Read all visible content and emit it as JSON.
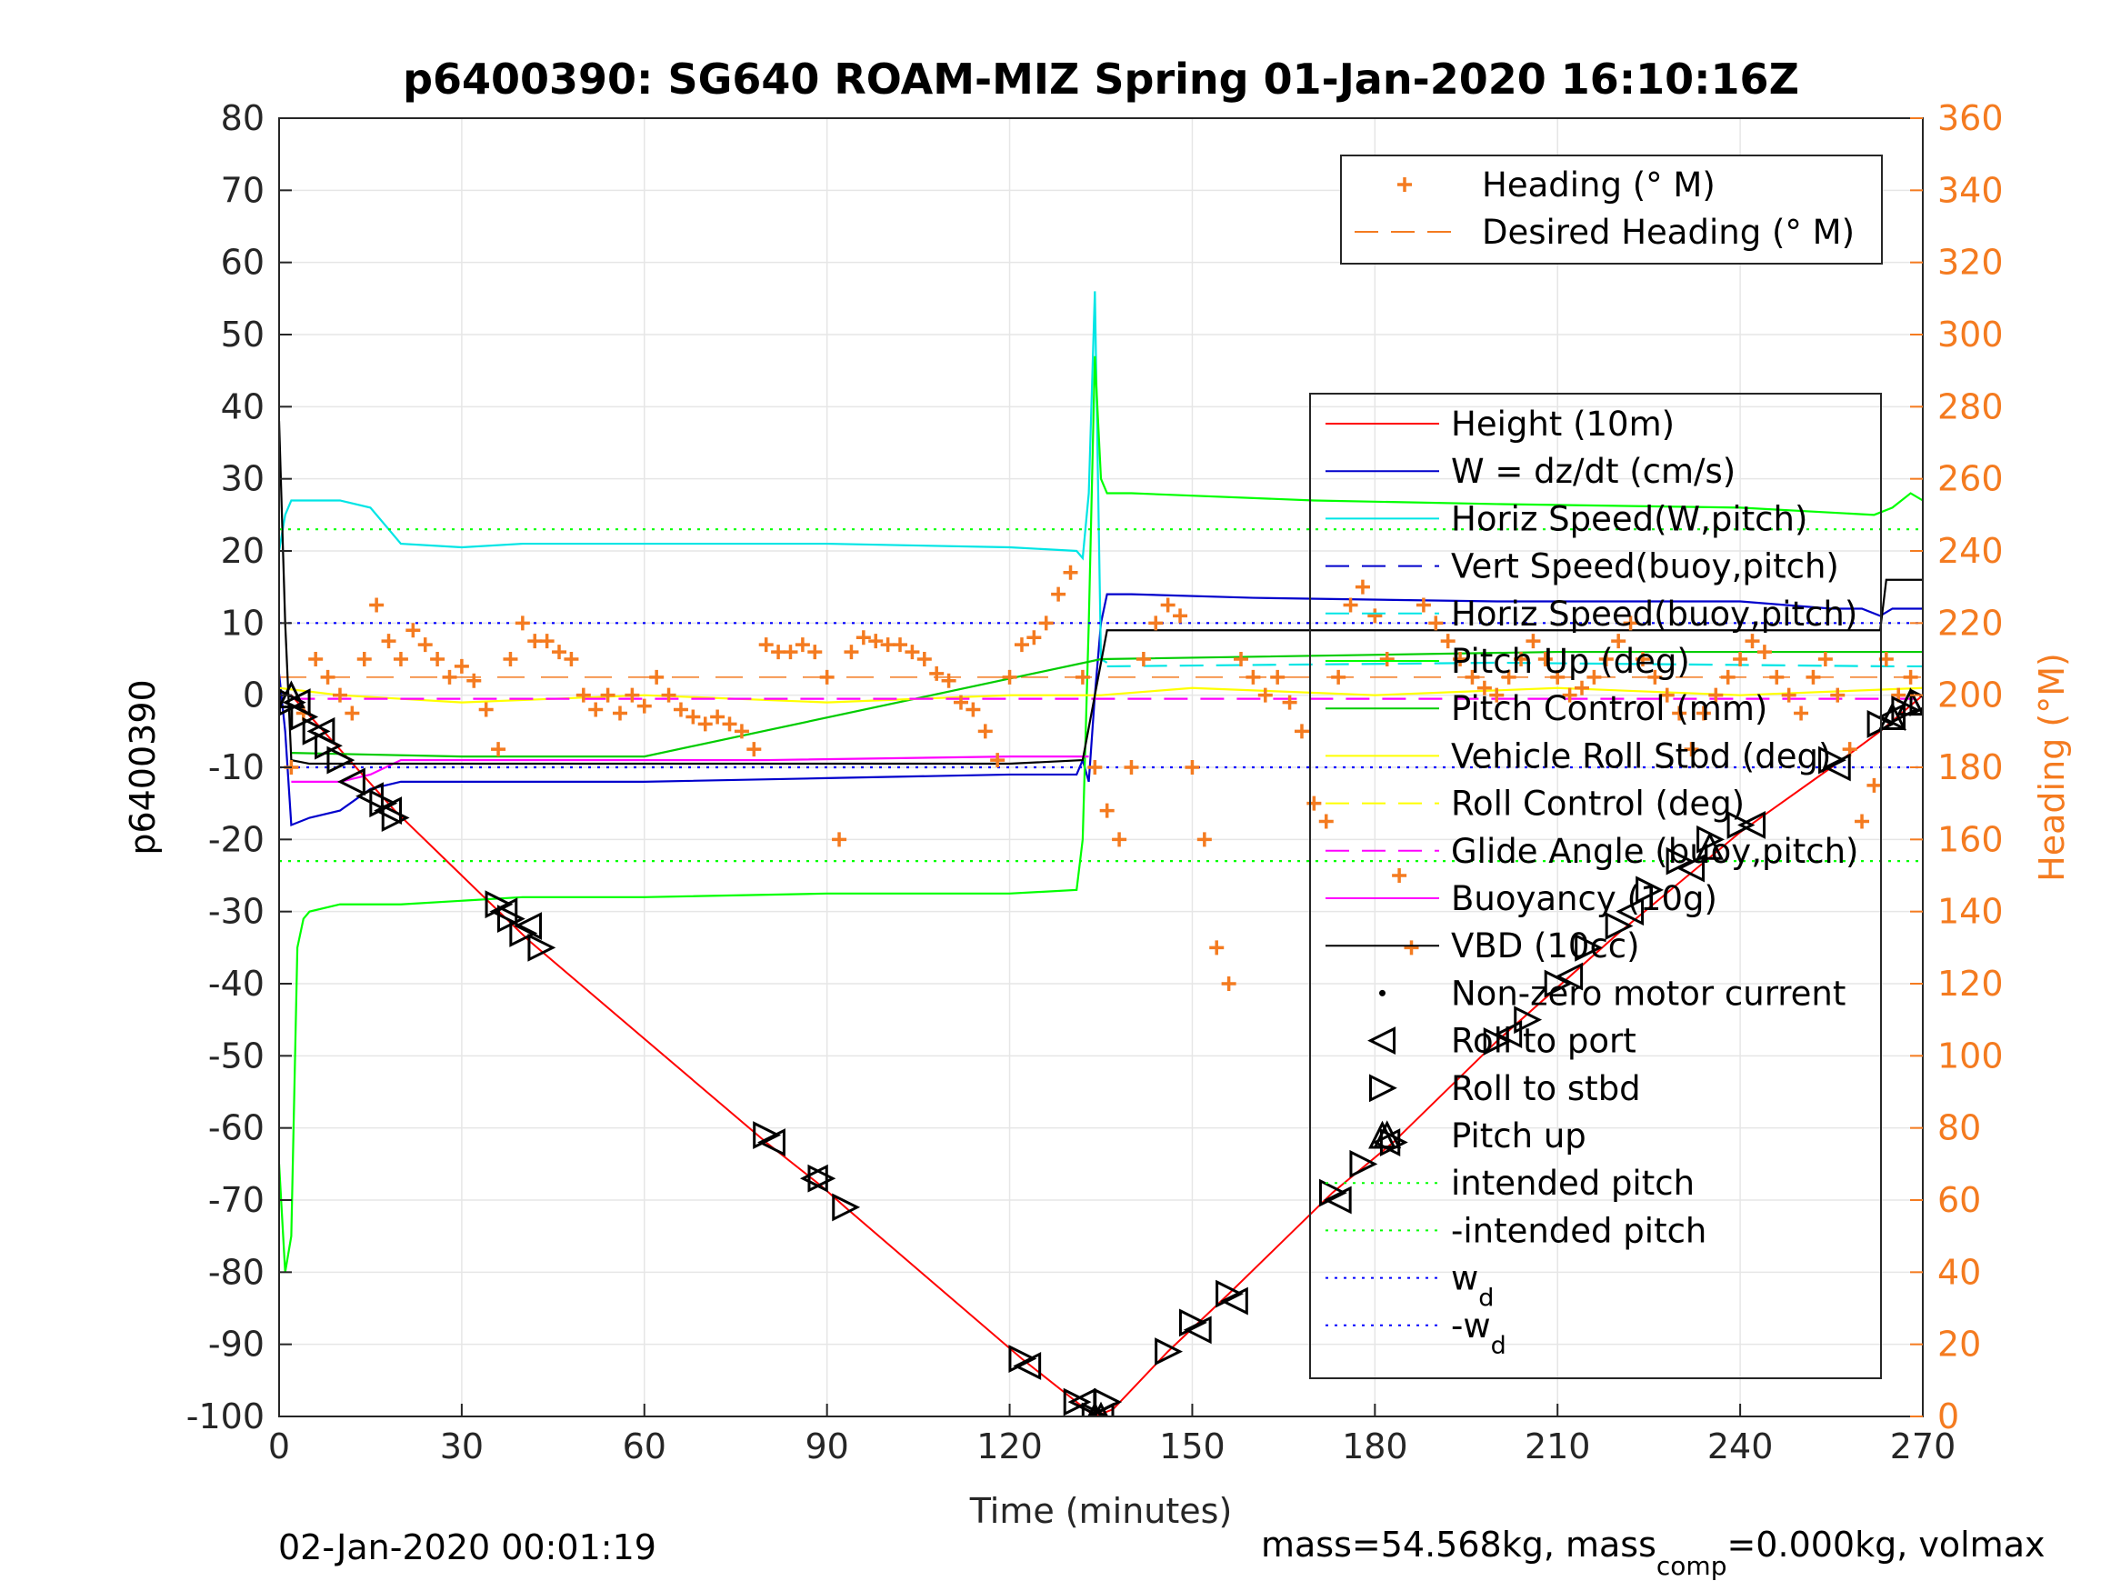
{
  "chart_data": {
    "type": "line",
    "title": "p6400390: SG640 ROAM-MIZ Spring 01-Jan-2020 16:10:16Z",
    "xlabel": "Time (minutes)",
    "ylabel": "p6400390",
    "ylabel_right": "Heading (°M)",
    "xlim": [
      0,
      270
    ],
    "ylim": [
      -100,
      80
    ],
    "ylim_right": [
      0,
      360
    ],
    "x_ticks": [
      0,
      30,
      60,
      90,
      120,
      150,
      180,
      210,
      240,
      270
    ],
    "y_ticks": [
      -100,
      -90,
      -80,
      -70,
      -60,
      -50,
      -40,
      -30,
      -20,
      -10,
      0,
      10,
      20,
      30,
      40,
      50,
      60,
      70,
      80
    ],
    "y_ticks_right": [
      0,
      20,
      40,
      60,
      80,
      100,
      120,
      140,
      160,
      180,
      200,
      220,
      240,
      260,
      280,
      300,
      320,
      340,
      360
    ],
    "footer_left": "02-Jan-2020 00:01:19",
    "footer_right": {
      "prefix": "mass=54.568kg, mass",
      "sub": "comp",
      "suffix": "=0.000kg, volmax"
    },
    "legend_top": [
      {
        "label": "Heading (° M)",
        "color": "#f47b20",
        "style": "plus"
      },
      {
        "label": "Desired Heading (° M)",
        "color": "#f47b20",
        "style": "dashed"
      }
    ],
    "legend_main": [
      {
        "label": "Height (10m)",
        "color": "#ff0000",
        "style": "solid"
      },
      {
        "label": "W = dz/dt (cm/s)",
        "color": "#0000cc",
        "style": "solid"
      },
      {
        "label": "Horiz Speed(W,pitch)",
        "color": "#00e5e5",
        "style": "solid"
      },
      {
        "label": "Vert Speed(buoy,pitch)",
        "color": "#0000cc",
        "style": "dashed"
      },
      {
        "label": "Horiz Speed(buoy,pitch)",
        "color": "#00e5e5",
        "style": "dashed"
      },
      {
        "label": "Pitch Up (deg)",
        "color": "#00ff00",
        "style": "solid"
      },
      {
        "label": "Pitch Control (mm)",
        "color": "#00cc00",
        "style": "solid"
      },
      {
        "label": "Vehicle Roll Stbd (deg)",
        "color": "#ffff00",
        "style": "solid"
      },
      {
        "label": "Roll Control (deg)",
        "color": "#ffff00",
        "style": "dashed"
      },
      {
        "label": "Glide Angle (buoy,pitch)",
        "color": "#ff00ff",
        "style": "dashed"
      },
      {
        "label": "Buoyancy (10g)",
        "color": "#ff00ff",
        "style": "solid"
      },
      {
        "label": "VBD (10cc)",
        "color": "#000000",
        "style": "solid"
      },
      {
        "label": "Non-zero motor current",
        "color": "#000000",
        "style": "dot"
      },
      {
        "label": "Roll to port",
        "color": "#000000",
        "style": "tri-left"
      },
      {
        "label": "Roll to stbd",
        "color": "#000000",
        "style": "tri-right"
      },
      {
        "label": "Pitch up",
        "color": "#000000",
        "style": "tri-up"
      },
      {
        "label": "intended pitch",
        "color": "#00ff00",
        "style": "dotted"
      },
      {
        "label": "-intended pitch",
        "color": "#00ff00",
        "style": "dotted"
      },
      {
        "label": "w",
        "sub": "d",
        "color": "#0000ff",
        "style": "dotted"
      },
      {
        "label": "-w",
        "sub": "d",
        "color": "#0000ff",
        "style": "dotted"
      }
    ],
    "series": [
      {
        "name": "Height (10m)",
        "color": "#ff0000",
        "x": [
          0,
          2,
          19,
          41,
          80,
          89,
          93,
          122,
          131,
          134,
          137,
          146,
          156,
          173,
          183,
          200,
          220,
          240,
          255,
          263,
          270
        ],
        "y": [
          0,
          0,
          -16,
          -34,
          -62,
          -68,
          -71,
          -92,
          -98,
          -100,
          -99,
          -91,
          -83,
          -69,
          -62,
          -48,
          -33,
          -19,
          -10,
          -5,
          0
        ]
      },
      {
        "name": "W = dz/dt (cm/s)",
        "color": "#0000cc",
        "x": [
          0,
          1,
          2,
          5,
          10,
          15,
          20,
          30,
          40,
          60,
          90,
          120,
          131,
          132,
          133,
          134,
          135,
          136,
          140,
          160,
          200,
          240,
          255,
          260,
          263,
          265,
          270
        ],
        "y": [
          3,
          -5,
          -18,
          -17,
          -16,
          -13,
          -12,
          -12,
          -12,
          -12,
          -11.5,
          -11,
          -11,
          -9,
          -12,
          0,
          10,
          14,
          14,
          13.5,
          13,
          13,
          12,
          12,
          11,
          12,
          12
        ]
      },
      {
        "name": "Horiz Speed(W,pitch)",
        "color": "#00e5e5",
        "x": [
          0,
          1,
          2,
          5,
          10,
          15,
          20,
          30,
          40,
          60,
          90,
          120,
          131,
          132,
          133,
          134,
          135,
          136
        ],
        "y": [
          20,
          25,
          27,
          27,
          27,
          26,
          21,
          20.5,
          21,
          21,
          21,
          20.5,
          20,
          19,
          28,
          56,
          5,
          4.5
        ]
      },
      {
        "name": "Horiz Speed(buoy,pitch)",
        "color": "#00e5e5",
        "x": [
          136,
          200,
          265,
          270
        ],
        "y": [
          4,
          4.5,
          4,
          4
        ]
      },
      {
        "name": "Pitch Up (deg)",
        "color": "#00ff00",
        "x": [
          0,
          1,
          2,
          3,
          4,
          5,
          10,
          20,
          40,
          60,
          90,
          120,
          131,
          132,
          133,
          134,
          135,
          136,
          140,
          170,
          200,
          240,
          262,
          265,
          268,
          270
        ],
        "y": [
          -65,
          -80,
          -75,
          -35,
          -31,
          -30,
          -29,
          -29,
          -28,
          -28,
          -27.5,
          -27.5,
          -27,
          -20,
          10,
          47,
          30,
          28,
          28,
          27,
          26.5,
          26,
          25,
          26,
          28,
          27
        ]
      },
      {
        "name": "Pitch Control (mm)",
        "color": "#00cc00",
        "x": [
          2,
          30,
          60,
          135,
          210,
          270
        ],
        "y": [
          -8,
          -8.5,
          -8.5,
          5,
          6,
          6
        ]
      },
      {
        "name": "Vehicle Roll Stbd (deg)",
        "color": "#ffff00",
        "x": [
          0,
          10,
          30,
          60,
          90,
          120,
          135,
          150,
          180,
          210,
          240,
          270
        ],
        "y": [
          1,
          0,
          -1,
          0,
          -1,
          0,
          0,
          1,
          0,
          1,
          0,
          1
        ]
      },
      {
        "name": "Glide Angle (buoy,pitch)",
        "color": "#ff00ff",
        "x": [
          2,
          270
        ],
        "y": [
          -0.5,
          -0.5
        ]
      },
      {
        "name": "Buoyancy (10g)",
        "color": "#ff00ff",
        "x": [
          2,
          10,
          15,
          20,
          40,
          80,
          120,
          133
        ],
        "y": [
          -12,
          -12,
          -11,
          -9,
          -9,
          -9,
          -8.5,
          -8.5
        ]
      },
      {
        "name": "VBD (10cc)",
        "color": "#000000",
        "x": [
          0,
          1,
          2,
          5,
          15,
          60,
          120,
          132,
          136,
          150,
          200,
          263,
          264,
          270
        ],
        "y": [
          38,
          10,
          -9,
          -9.5,
          -9.5,
          -9.5,
          -9.5,
          -9,
          9,
          9,
          9,
          9,
          16,
          16
        ]
      },
      {
        "name": "intended pitch",
        "color": "#00ff00",
        "x": [
          0,
          270
        ],
        "y": [
          23,
          23
        ]
      },
      {
        "name": "-intended pitch",
        "color": "#00ff00",
        "x": [
          0,
          270
        ],
        "y": [
          -23,
          -23
        ]
      },
      {
        "name": "w",
        "color": "#0000ff",
        "x": [
          0,
          270
        ],
        "y": [
          10,
          10
        ]
      },
      {
        "name": "-w",
        "color": "#0000ff",
        "x": [
          0,
          270
        ],
        "y": [
          -10,
          -10
        ]
      }
    ],
    "heading_points": {
      "name": "Heading (° M)",
      "color": "#f47b20",
      "x": [
        2,
        4,
        6,
        8,
        10,
        12,
        14,
        16,
        18,
        20,
        22,
        24,
        26,
        28,
        30,
        32,
        34,
        36,
        38,
        40,
        42,
        44,
        46,
        48,
        50,
        52,
        54,
        56,
        58,
        60,
        62,
        64,
        66,
        68,
        70,
        72,
        74,
        76,
        78,
        80,
        82,
        84,
        86,
        88,
        90,
        92,
        94,
        96,
        98,
        100,
        102,
        104,
        106,
        108,
        110,
        112,
        114,
        116,
        118,
        120,
        122,
        124,
        126,
        128,
        130,
        132,
        134,
        136,
        138,
        140,
        142,
        144,
        146,
        148,
        150,
        152,
        154,
        156,
        158,
        160,
        162,
        164,
        166,
        168,
        170,
        172,
        174,
        176,
        178,
        180,
        182,
        184,
        186,
        188,
        190,
        192,
        194,
        196,
        198,
        200,
        202,
        204,
        206,
        208,
        210,
        212,
        214,
        216,
        218,
        220,
        222,
        224,
        226,
        228,
        230,
        232,
        234,
        236,
        238,
        240,
        242,
        244,
        246,
        248,
        250,
        252,
        254,
        256,
        258,
        260,
        262,
        264,
        266,
        268
      ],
      "y": [
        180,
        195,
        210,
        205,
        200,
        195,
        210,
        225,
        215,
        210,
        218,
        214,
        210,
        205,
        208,
        204,
        196,
        185,
        210,
        220,
        215,
        215,
        212,
        210,
        200,
        196,
        200,
        195,
        200,
        197,
        205,
        200,
        196,
        194,
        192,
        194,
        192,
        190,
        185,
        214,
        212,
        212,
        214,
        212,
        205,
        160,
        212,
        216,
        215,
        214,
        214,
        212,
        210,
        206,
        204,
        198,
        196,
        190,
        182,
        205,
        214,
        216,
        220,
        228,
        234,
        205,
        180,
        168,
        160,
        180,
        210,
        220,
        225,
        222,
        180,
        160,
        130,
        120,
        210,
        205,
        200,
        205,
        198,
        190,
        170,
        165,
        205,
        225,
        230,
        222,
        210,
        150,
        130,
        225,
        220,
        215,
        210,
        205,
        202,
        200,
        205,
        210,
        215,
        210,
        205,
        200,
        202,
        205,
        210,
        215,
        220,
        210,
        205,
        200,
        195,
        185,
        195,
        200,
        205,
        210,
        215,
        212,
        205,
        200,
        195,
        205,
        210,
        200,
        185,
        165,
        175,
        210,
        200,
        205
      ]
    },
    "desired_heading": {
      "name": "Desired Heading (° M)",
      "color": "#f47b20",
      "value": 205
    },
    "markers": {
      "roll_to_stbd": {
        "x": [
          2,
          4,
          6,
          8,
          10,
          17,
          19,
          36,
          38,
          40,
          43,
          80,
          89,
          93,
          122,
          131,
          134,
          136,
          146,
          150,
          156,
          173,
          178,
          183,
          200,
          205,
          210,
          215,
          220,
          225,
          230,
          235,
          240,
          255,
          263,
          267,
          270
        ],
        "y": [
          -1,
          -3,
          -5,
          -7,
          -9,
          -15,
          -17,
          -29,
          -31,
          -33,
          -35,
          -61,
          -67,
          -71,
          -92,
          -98,
          -100,
          -98,
          -91,
          -87,
          -83,
          -69,
          -65,
          -62,
          -48,
          -45,
          -40,
          -35,
          -32,
          -27,
          -23,
          -20,
          -18,
          -9,
          -4,
          -2,
          -1
        ]
      },
      "roll_to_port": {
        "x": [
          3,
          7,
          12,
          15,
          18,
          37,
          41,
          81,
          88,
          123,
          132,
          135,
          151,
          157,
          174,
          182,
          202,
          212,
          222,
          232,
          242,
          256,
          265
        ],
        "y": [
          -1,
          -5,
          -12,
          -14,
          -16,
          -30,
          -32,
          -62,
          -67,
          -93,
          -98,
          -100,
          -88,
          -84,
          -70,
          -62,
          -47,
          -39,
          -30,
          -24,
          -18,
          -10,
          -3
        ]
      },
      "pitch_up": {
        "x": [
          2,
          134,
          135,
          182,
          235,
          265,
          268
        ],
        "y": [
          0,
          -100,
          -100,
          -61,
          -21,
          -3,
          -1
        ]
      }
    }
  }
}
